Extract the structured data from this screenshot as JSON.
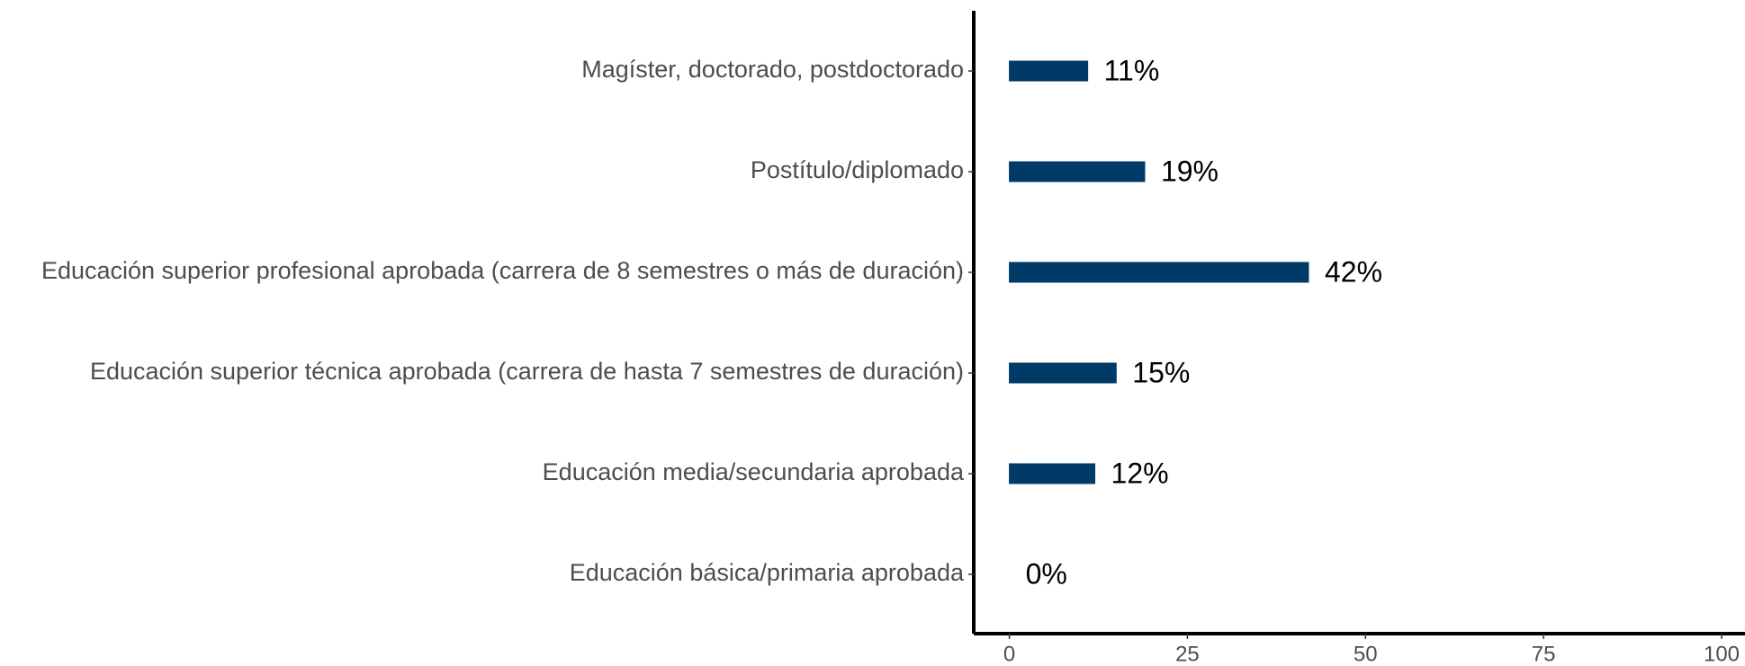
{
  "chart_data": {
    "type": "bar",
    "orientation": "horizontal",
    "categories": [
      "Magíster, doctorado, postdoctorado",
      "Postítulo/diplomado",
      "Educación superior profesional aprobada (carrera de 8 semestres o más de duración)",
      "Educación superior técnica aprobada (carrera de hasta 7 semestres de duración)",
      "Educación media/secundaria aprobada",
      "Educación básica/primaria aprobada"
    ],
    "values": [
      11,
      19,
      42,
      15,
      12,
      0
    ],
    "value_labels": [
      "11%",
      "19%",
      "42%",
      "15%",
      "12%",
      "0%"
    ],
    "color": "#003a66",
    "xlim": [
      -5,
      100
    ],
    "xticks": [
      0,
      25,
      50,
      75,
      100
    ],
    "grid": false
  }
}
